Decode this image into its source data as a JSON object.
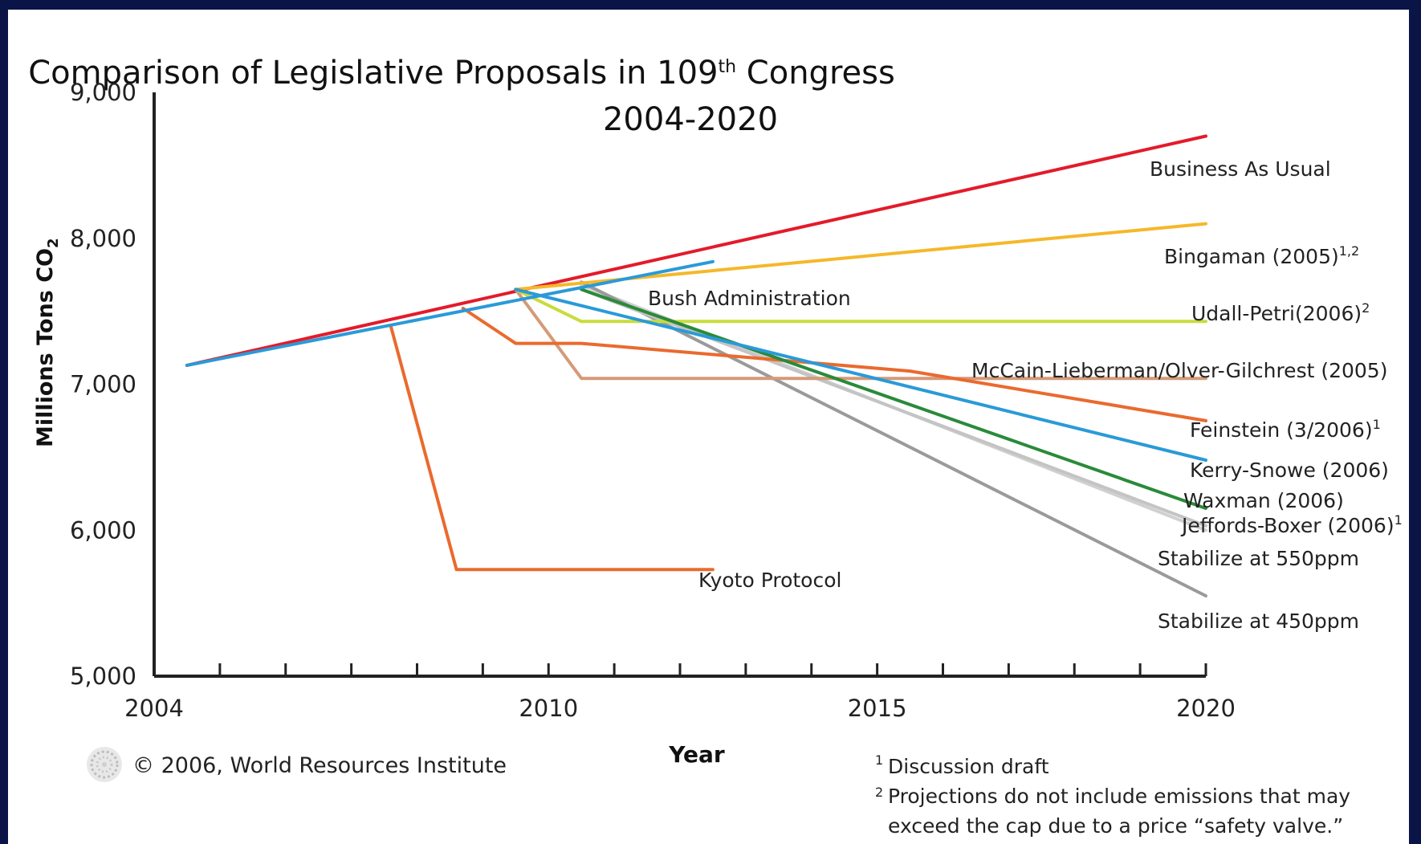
{
  "chart_data": {
    "type": "line",
    "title": "Comparison of Legislative Proposals in 109",
    "title_sup": "th",
    "title_suffix": " Congress",
    "subtitle": "2004-2020",
    "xlabel": "Year",
    "ylabel": "Millions Tons CO",
    "ylabel_sub": "2",
    "xlim": [
      2004,
      2020
    ],
    "ylim": [
      5000,
      9000
    ],
    "x_ticks": [
      2004,
      2010,
      2015,
      2020
    ],
    "x_tick_labels": [
      "2004",
      "2010",
      "2015",
      "2020"
    ],
    "y_ticks": [
      5000,
      6000,
      7000,
      8000,
      9000
    ],
    "y_tick_labels": [
      "5,000",
      "6,000",
      "7,000",
      "8,000",
      "9,000"
    ],
    "grid": false,
    "series": [
      {
        "name": "Business As Usual",
        "sup": "",
        "color": "#e31b2a",
        "points": [
          [
            2004.5,
            7130
          ],
          [
            2020,
            8700
          ]
        ]
      },
      {
        "name": "Bingaman (2005)",
        "sup": "1,2",
        "color": "#f5b82a",
        "points": [
          [
            2009.5,
            7650
          ],
          [
            2020,
            8100
          ]
        ]
      },
      {
        "name": "Udall-Petri(2006)",
        "sup": "2",
        "color": "#c8dc3c",
        "points": [
          [
            2009.5,
            7650
          ],
          [
            2010.5,
            7430
          ],
          [
            2020,
            7430
          ]
        ]
      },
      {
        "name": "McCain-Lieberman/Olver-Gilchrest (2005)",
        "sup": "",
        "color": "#d49a78",
        "points": [
          [
            2009.5,
            7650
          ],
          [
            2010.5,
            7040
          ],
          [
            2020,
            7040
          ]
        ]
      },
      {
        "name": "Feinstein (3/2006)",
        "sup": "1",
        "color": "#ea6a2e",
        "points": [
          [
            2008.7,
            7520
          ],
          [
            2009.5,
            7280
          ],
          [
            2010.5,
            7280
          ],
          [
            2015.5,
            7090
          ],
          [
            2020,
            6750
          ]
        ]
      },
      {
        "name": "Kerry-Snowe (2006)",
        "sup": "",
        "color": "#2a9ad8",
        "points": [
          [
            2009.5,
            7650
          ],
          [
            2020,
            6480
          ]
        ]
      },
      {
        "name": "Waxman (2006)",
        "sup": "",
        "color": "#2a8a3a",
        "points": [
          [
            2010.5,
            7650
          ],
          [
            2020,
            6150
          ]
        ]
      },
      {
        "name": "Jeffords-Boxer (2006)",
        "sup": "1",
        "color": "#c4c4c4",
        "points": [
          [
            2010.5,
            7650
          ],
          [
            2020,
            6030
          ]
        ]
      },
      {
        "name": "Stabilize at 550ppm",
        "sup": "",
        "color": "#d0d0d0",
        "points": [
          [
            2010.5,
            7680
          ],
          [
            2020,
            6000
          ]
        ]
      },
      {
        "name": "Stabilize at 450ppm",
        "sup": "",
        "color": "#9a9a9a",
        "points": [
          [
            2010.5,
            7700
          ],
          [
            2020,
            5550
          ]
        ]
      },
      {
        "name": "Bush Administration",
        "sup": "",
        "color": "#2a9ad8",
        "points": [
          [
            2004.5,
            7130
          ],
          [
            2012.5,
            7840
          ]
        ]
      },
      {
        "name": "Kyoto Protocol",
        "sup": "",
        "color": "#ea6a2e",
        "points": [
          [
            2007.6,
            7400
          ],
          [
            2008.6,
            5730
          ],
          [
            2012.5,
            5730
          ]
        ]
      }
    ]
  },
  "footer": {
    "copyright": "© 2006, World Resources Institute",
    "note1_marker": "1",
    "note1": "Discussion draft",
    "note2_marker": "2",
    "note2_line1": "Projections do not include emissions that may",
    "note2_line2": "exceed the cap due to a price “safety valve.”"
  },
  "colors": {
    "background": "#0a1446",
    "panel": "#ffffff",
    "axis": "#222222"
  },
  "icons": {
    "logo": "wri-logo-icon"
  }
}
